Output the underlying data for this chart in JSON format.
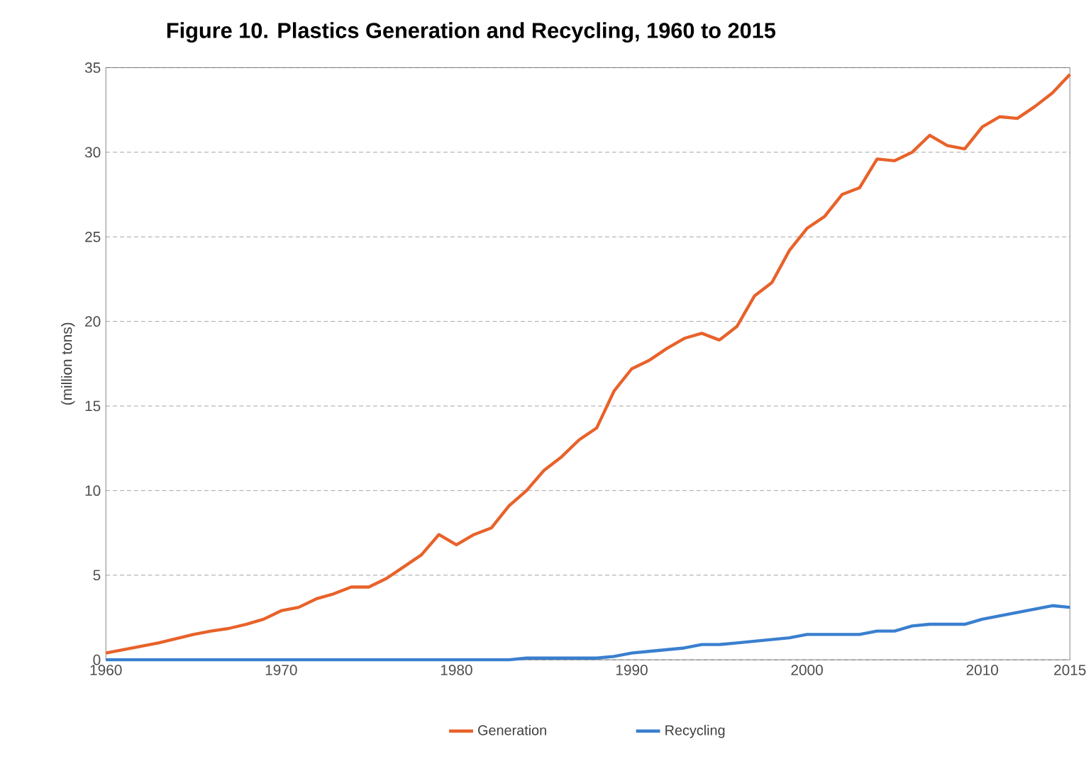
{
  "chart_data": {
    "type": "line",
    "title": "Figure 10. Plastics Generation and Recycling, 1960 to 2015",
    "ylabel": "(million tons)",
    "x": [
      1960,
      1961,
      1962,
      1963,
      1964,
      1965,
      1966,
      1967,
      1968,
      1969,
      1970,
      1971,
      1972,
      1973,
      1974,
      1975,
      1976,
      1977,
      1978,
      1979,
      1980,
      1981,
      1982,
      1983,
      1984,
      1985,
      1986,
      1987,
      1988,
      1989,
      1990,
      1991,
      1992,
      1993,
      1994,
      1995,
      1996,
      1997,
      1998,
      1999,
      2000,
      2001,
      2002,
      2003,
      2004,
      2005,
      2006,
      2007,
      2008,
      2009,
      2010,
      2011,
      2012,
      2013,
      2014,
      2015
    ],
    "series": [
      {
        "name": "Generation",
        "color": "#e8622a",
        "values": [
          0.4,
          0.6,
          0.8,
          1.0,
          1.25,
          1.5,
          1.7,
          1.85,
          2.1,
          2.4,
          2.9,
          3.1,
          3.6,
          3.9,
          4.3,
          4.3,
          4.8,
          5.5,
          6.2,
          7.4,
          6.8,
          7.4,
          7.8,
          9.1,
          10.0,
          11.2,
          12.0,
          13.0,
          13.7,
          15.9,
          17.2,
          17.7,
          18.4,
          19.0,
          19.3,
          18.9,
          19.7,
          21.5,
          22.3,
          24.2,
          25.5,
          26.2,
          27.5,
          27.9,
          29.6,
          29.5,
          30.0,
          31.0,
          30.4,
          30.2,
          31.5,
          32.1,
          32.0,
          32.7,
          33.5,
          34.6
        ]
      },
      {
        "name": "Recycling",
        "color": "#3a7fcf",
        "values": [
          0,
          0,
          0,
          0,
          0,
          0,
          0,
          0,
          0,
          0,
          0,
          0,
          0,
          0,
          0,
          0,
          0,
          0,
          0,
          0,
          0,
          0,
          0,
          0,
          0.1,
          0.1,
          0.1,
          0.1,
          0.1,
          0.2,
          0.4,
          0.5,
          0.6,
          0.7,
          0.9,
          0.9,
          1.0,
          1.1,
          1.2,
          1.3,
          1.5,
          1.5,
          1.5,
          1.5,
          1.7,
          1.7,
          2.0,
          2.1,
          2.1,
          2.1,
          2.4,
          2.6,
          2.8,
          3.0,
          3.2,
          3.1
        ]
      }
    ],
    "xlim": [
      1960,
      2015
    ],
    "xticks": [
      1960,
      1970,
      1980,
      1990,
      2000,
      2010,
      2015
    ],
    "ylim": [
      0,
      35
    ],
    "yticks": [
      0,
      5,
      10,
      15,
      20,
      25,
      30,
      35
    ],
    "grid": "y",
    "legend": "bottom",
    "line_style": "solid",
    "marker": "none"
  }
}
